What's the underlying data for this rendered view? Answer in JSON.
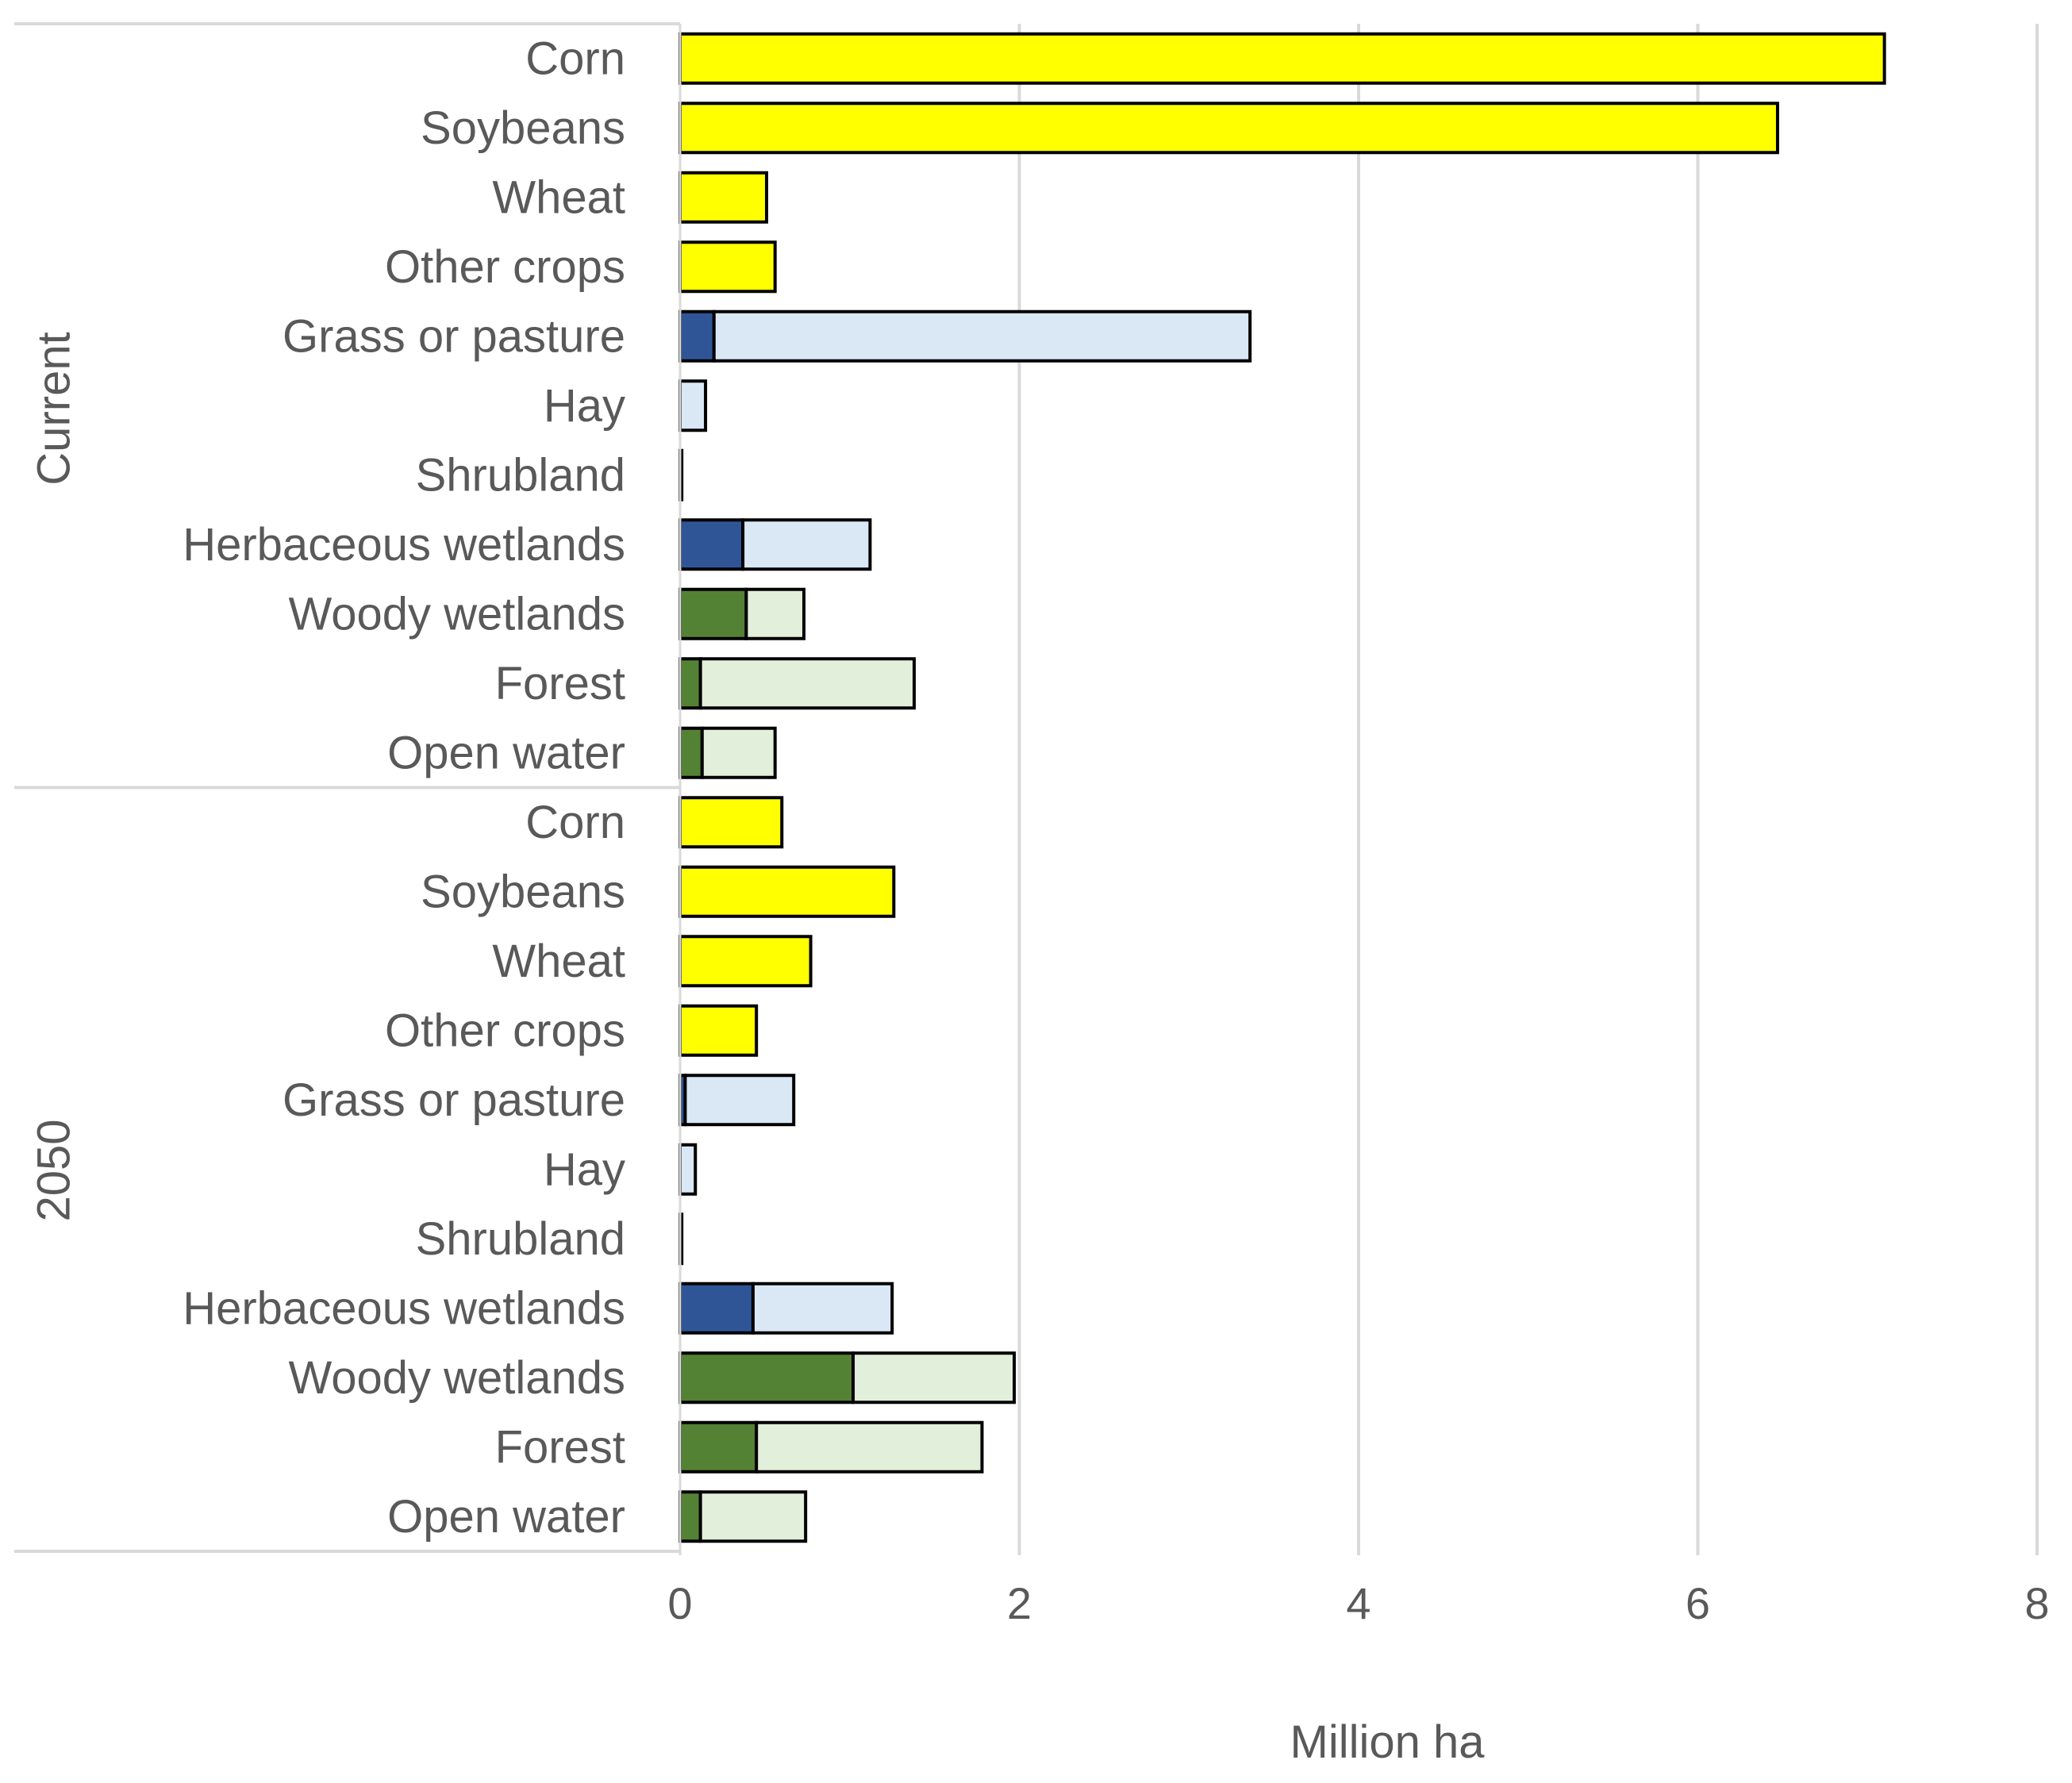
{
  "chart_data": {
    "type": "bar",
    "orientation": "horizontal",
    "stacked": true,
    "xlabel": "Million ha",
    "xlim": [
      0,
      8
    ],
    "xticks": [
      0,
      2,
      4,
      6,
      8
    ],
    "grid": "vertical",
    "legend": "none",
    "groups": [
      {
        "label": "Current",
        "categories": [
          "Corn",
          "Soybeans",
          "Wheat",
          "Other crops",
          "Grass or pasture",
          "Hay",
          "Shrubland",
          "Herbaceous wetlands",
          "Woody wetlands",
          "Forest",
          "Open water"
        ],
        "dark_segment": [
          0,
          0,
          0,
          0,
          0.2,
          0,
          0,
          0.37,
          0.39,
          0.12,
          0.13
        ],
        "light_segment": [
          7.1,
          6.47,
          0.51,
          0.56,
          3.16,
          0.15,
          0.01,
          0.75,
          0.34,
          1.26,
          0.43
        ],
        "colors": [
          "yellow",
          "yellow",
          "yellow",
          "yellow",
          "blue",
          "blue",
          "blue",
          "blue",
          "green",
          "green",
          "green"
        ]
      },
      {
        "label": "2050",
        "categories": [
          "Corn",
          "Soybeans",
          "Wheat",
          "Other crops",
          "Grass or pasture",
          "Hay",
          "Shrubland",
          "Herbaceous wetlands",
          "Woody wetlands",
          "Forest",
          "Open water"
        ],
        "dark_segment": [
          0,
          0,
          0,
          0,
          0.03,
          0,
          0,
          0.43,
          1.02,
          0.45,
          0.12
        ],
        "light_segment": [
          0.6,
          1.26,
          0.77,
          0.45,
          0.64,
          0.09,
          0.01,
          0.82,
          0.95,
          1.33,
          0.62
        ],
        "colors": [
          "yellow",
          "yellow",
          "yellow",
          "yellow",
          "blue",
          "blue",
          "blue",
          "blue",
          "green",
          "green",
          "green"
        ]
      }
    ],
    "palette": {
      "yellow": {
        "dark": "#ffff00",
        "light": "#ffff00"
      },
      "blue": {
        "dark": "#2f5597",
        "light": "#dae7f5"
      },
      "green": {
        "dark": "#548235",
        "light": "#e2efda"
      },
      "outline": "#000000",
      "grid": "#d9d9d9",
      "text": "#595959"
    }
  }
}
